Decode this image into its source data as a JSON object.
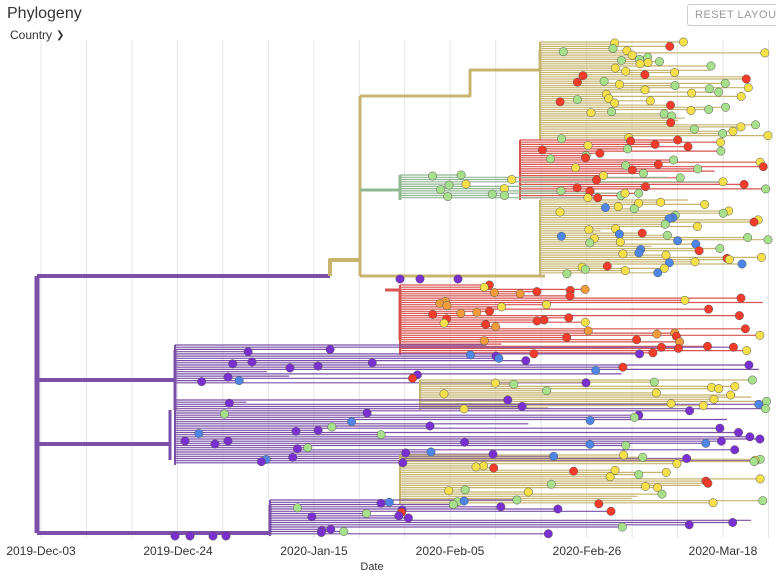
{
  "panel": {
    "title": "Phylogeny",
    "color_by_label": "Country",
    "reset_button": "RESET LAYOUT"
  },
  "axis": {
    "label": "Date",
    "ticks": [
      "2019-Dec-03",
      "2019-Dec-24",
      "2020-Jan-15",
      "2020-Feb-05",
      "2020-Feb-26",
      "2020-Mar-18"
    ]
  },
  "colors": {
    "purple": "#7b4fa8",
    "tan": "#c7b56f",
    "red": "#d9534f",
    "green": "#8fb892",
    "tip_red": "#f53b2a",
    "tip_yellow": "#f5e04a",
    "tip_green": "#a7e08a",
    "tip_blue": "#4e86e8",
    "tip_violet": "#7a2fd0",
    "tip_orange": "#f29b3a",
    "gridline": "#e5e5e5"
  }
}
